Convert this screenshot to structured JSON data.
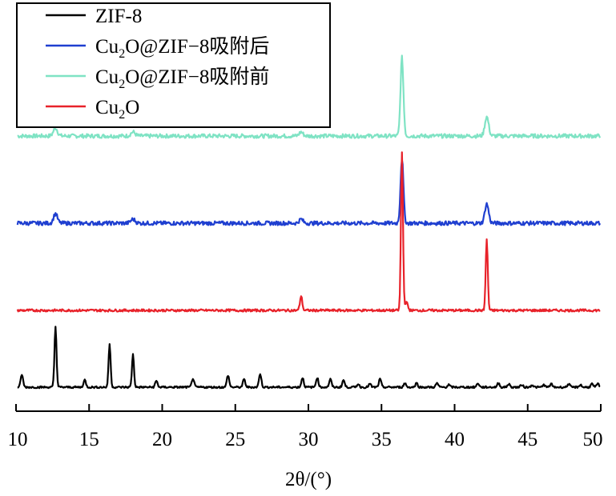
{
  "chart_data": {
    "type": "line",
    "title": "",
    "xlabel": "2θ/(°)",
    "ylabel": "",
    "xlim": [
      10,
      50
    ],
    "x_ticks": [
      10,
      15,
      20,
      25,
      30,
      35,
      40,
      45,
      50
    ],
    "y_ticks": [],
    "grid": false,
    "legend_position": "top-left",
    "legend": [
      {
        "label_main": "ZIF-8",
        "label_sub": "",
        "label_rest": "",
        "series": 3
      },
      {
        "label_main": "Cu",
        "label_sub": "2",
        "label_rest": "O@ZIF−8吸附后",
        "series": 1
      },
      {
        "label_main": "Cu",
        "label_sub": "2",
        "label_rest": "O@ZIF−8吸附前",
        "series": 0
      },
      {
        "label_main": "Cu",
        "label_sub": "2",
        "label_rest": "O",
        "series": 2
      }
    ],
    "series": [
      {
        "name": "Cu₂O@ZIF−8吸附前",
        "color": "#7fe3c4",
        "baseline": 0.0,
        "noise": 0.0025,
        "peaks": [
          [
            12.7,
            0.01,
            0.14
          ],
          [
            18.0,
            0.005,
            0.15
          ],
          [
            29.5,
            0.005,
            0.13
          ],
          [
            36.4,
            0.098,
            0.1
          ],
          [
            42.2,
            0.024,
            0.13
          ]
        ]
      },
      {
        "name": "Cu₂O@ZIF−8吸附后",
        "color": "#1f3fd0",
        "baseline": -0.109,
        "noise": 0.0025,
        "peaks": [
          [
            12.7,
            0.012,
            0.13
          ],
          [
            18.0,
            0.005,
            0.15
          ],
          [
            29.5,
            0.005,
            0.13
          ],
          [
            36.4,
            0.081,
            0.1
          ],
          [
            42.2,
            0.024,
            0.13
          ]
        ]
      },
      {
        "name": "Cu₂O",
        "color": "#e8222a",
        "baseline": -0.218,
        "noise": 0.0015,
        "peaks": [
          [
            29.5,
            0.018,
            0.08
          ],
          [
            36.4,
            0.197,
            0.07
          ],
          [
            42.2,
            0.088,
            0.07
          ],
          [
            36.7,
            0.01,
            0.1
          ]
        ]
      },
      {
        "name": "ZIF-8",
        "color": "#000000",
        "baseline": -0.314,
        "noise": 0.0012,
        "peaks": [
          [
            10.4,
            0.016,
            0.08
          ],
          [
            12.7,
            0.076,
            0.07
          ],
          [
            14.7,
            0.009,
            0.08
          ],
          [
            16.4,
            0.054,
            0.07
          ],
          [
            18.0,
            0.041,
            0.07
          ],
          [
            19.6,
            0.008,
            0.08
          ],
          [
            22.1,
            0.011,
            0.08
          ],
          [
            24.5,
            0.015,
            0.08
          ],
          [
            25.6,
            0.01,
            0.08
          ],
          [
            26.7,
            0.017,
            0.08
          ],
          [
            29.6,
            0.012,
            0.08
          ],
          [
            30.6,
            0.012,
            0.08
          ],
          [
            31.5,
            0.01,
            0.08
          ],
          [
            32.4,
            0.009,
            0.08
          ],
          [
            33.4,
            0.004,
            0.08
          ],
          [
            34.2,
            0.004,
            0.08
          ],
          [
            34.9,
            0.01,
            0.08
          ],
          [
            36.6,
            0.005,
            0.08
          ],
          [
            37.4,
            0.005,
            0.08
          ],
          [
            38.8,
            0.005,
            0.08
          ],
          [
            39.6,
            0.003,
            0.08
          ],
          [
            41.6,
            0.005,
            0.08
          ],
          [
            43.0,
            0.005,
            0.08
          ],
          [
            43.7,
            0.004,
            0.08
          ],
          [
            44.6,
            0.003,
            0.08
          ],
          [
            45.3,
            0.003,
            0.08
          ],
          [
            46.1,
            0.003,
            0.08
          ],
          [
            46.6,
            0.004,
            0.08
          ],
          [
            47.8,
            0.004,
            0.08
          ],
          [
            48.6,
            0.003,
            0.08
          ],
          [
            49.4,
            0.004,
            0.08
          ],
          [
            49.8,
            0.004,
            0.08
          ]
        ]
      }
    ]
  }
}
